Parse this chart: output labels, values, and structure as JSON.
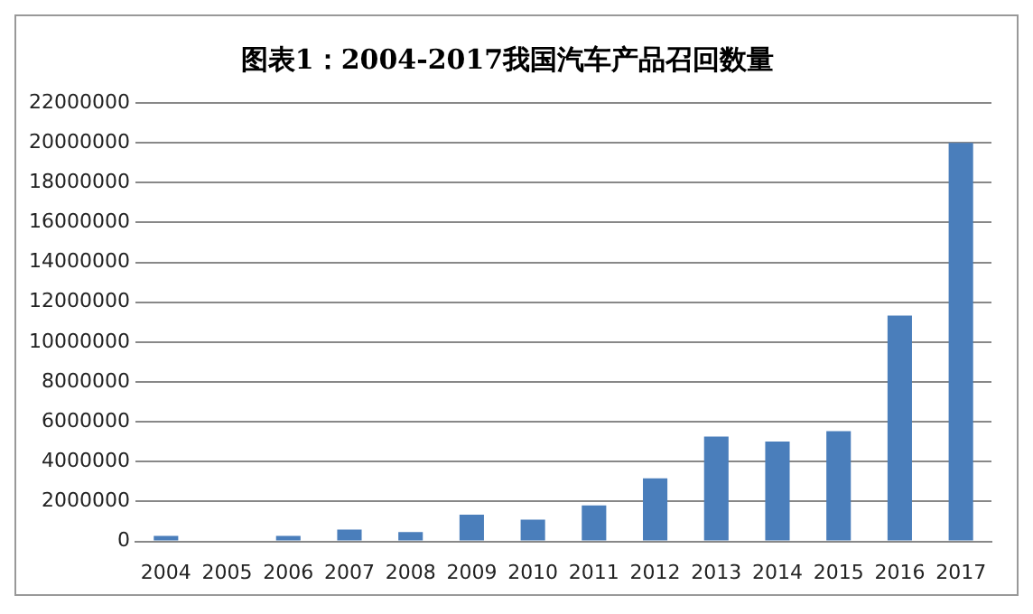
{
  "chart_data": {
    "type": "bar",
    "title": "图表1：2004-2017我国汽车产品召回数量",
    "categories": [
      "2004",
      "2005",
      "2006",
      "2007",
      "2008",
      "2009",
      "2010",
      "2011",
      "2012",
      "2013",
      "2014",
      "2015",
      "2016",
      "2017"
    ],
    "values": [
      280000,
      0,
      280000,
      590000,
      470000,
      1340000,
      1090000,
      1810000,
      3170000,
      5260000,
      5010000,
      5530000,
      11330000,
      20000000
    ],
    "color": "#4a7ebb",
    "ylim": [
      0,
      22000000
    ],
    "yticks": [
      0,
      2000000,
      4000000,
      6000000,
      8000000,
      10000000,
      12000000,
      14000000,
      16000000,
      18000000,
      20000000,
      22000000
    ],
    "grid": "y",
    "legend": false
  }
}
